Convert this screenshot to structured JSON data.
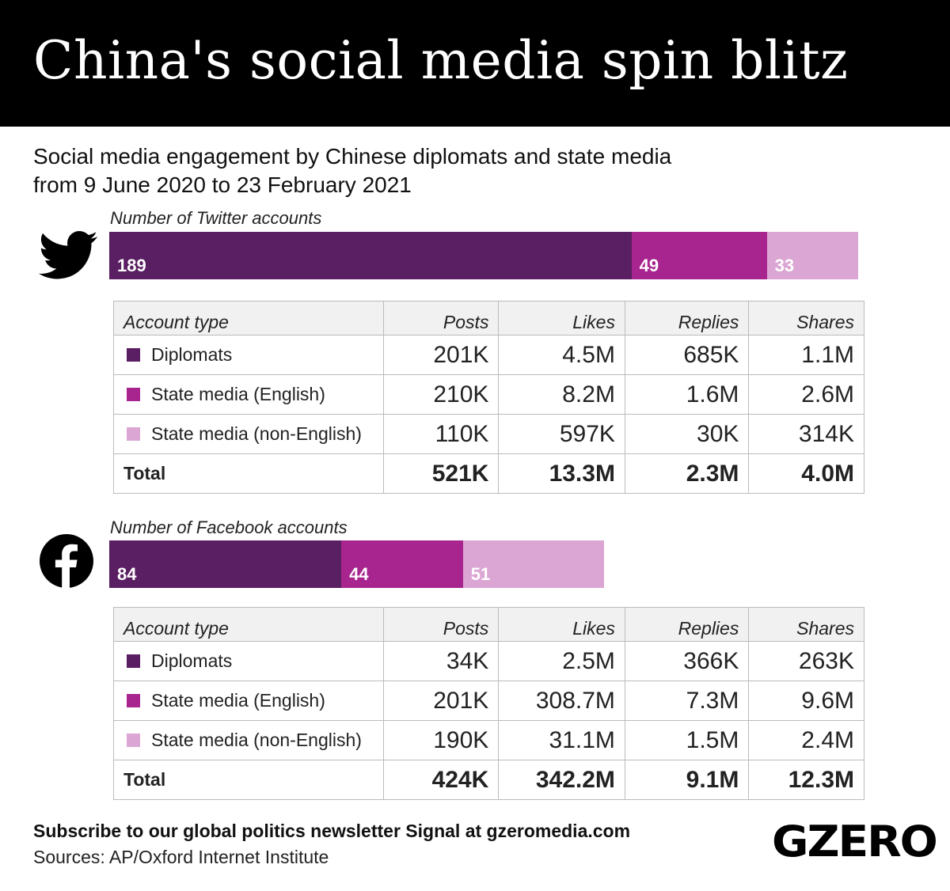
{
  "title": "China's social media spin blitz",
  "subtitle_line1": "Social media engagement by Chinese diplomats and state media",
  "subtitle_line2": "from 9 June 2020 to 23 February 2021",
  "colors": {
    "diplomats": "#5a1e62",
    "state_media_english": "#a8248e",
    "state_media_non_english": "#dba6d3"
  },
  "chart_data": [
    {
      "type": "bar",
      "orientation": "horizontal-stacked",
      "title": "Number of Twitter accounts",
      "icon": "twitter-bird-icon",
      "categories": [
        "Diplomats",
        "State media (English)",
        "State media (non-English)"
      ],
      "values": [
        189,
        49,
        33
      ],
      "table": {
        "headers": [
          "Account type",
          "Posts",
          "Likes",
          "Replies",
          "Shares"
        ],
        "rows": [
          {
            "label": "Diplomats",
            "values": [
              "201K",
              "4.5M",
              "685K",
              "1.1M"
            ]
          },
          {
            "label": "State media (English)",
            "values": [
              "210K",
              "8.2M",
              "1.6M",
              "2.6M"
            ]
          },
          {
            "label": "State media (non-English)",
            "values": [
              "110K",
              "597K",
              "30K",
              "314K"
            ]
          }
        ],
        "total": {
          "label": "Total",
          "values": [
            "521K",
            "13.3M",
            "2.3M",
            "4.0M"
          ]
        }
      }
    },
    {
      "type": "bar",
      "orientation": "horizontal-stacked",
      "title": "Number of Facebook accounts",
      "icon": "facebook-icon",
      "categories": [
        "Diplomats",
        "State media (English)",
        "State media (non-English)"
      ],
      "values": [
        84,
        44,
        51
      ],
      "table": {
        "headers": [
          "Account type",
          "Posts",
          "Likes",
          "Replies",
          "Shares"
        ],
        "rows": [
          {
            "label": "Diplomats",
            "values": [
              "34K",
              "2.5M",
              "366K",
              "263K"
            ]
          },
          {
            "label": "State media (English)",
            "values": [
              "201K",
              "308.7M",
              "7.3M",
              "9.6M"
            ]
          },
          {
            "label": "State media (non-English)",
            "values": [
              "190K",
              "31.1M",
              "1.5M",
              "2.4M"
            ]
          }
        ],
        "total": {
          "label": "Total",
          "values": [
            "424K",
            "342.2M",
            "9.1M",
            "12.3M"
          ]
        }
      }
    }
  ],
  "footer": {
    "subscribe": "Subscribe to our global politics newsletter Signal at gzeromedia.com",
    "sources": "Sources: AP/Oxford Internet Institute",
    "brand": "GZERO"
  }
}
